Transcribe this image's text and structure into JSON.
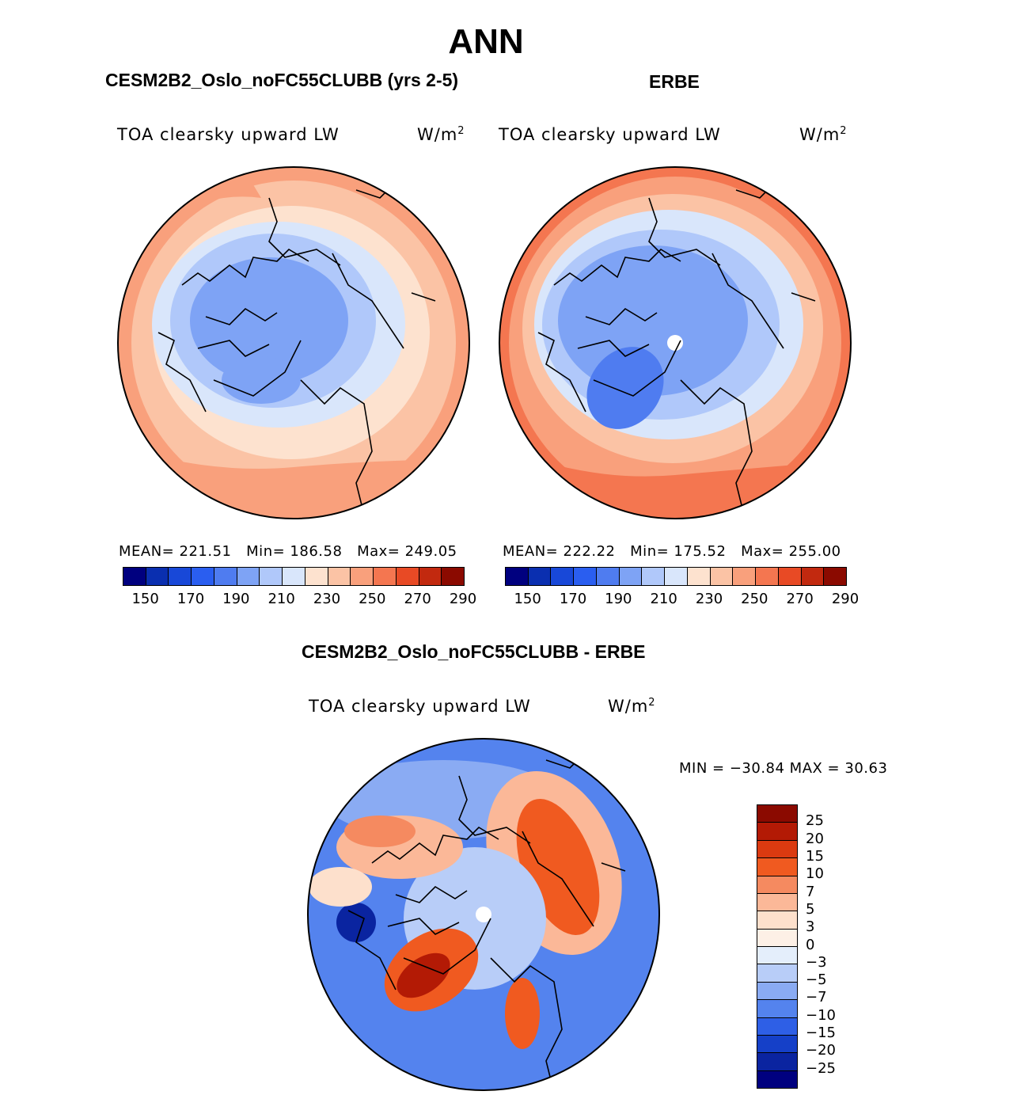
{
  "title": "ANN",
  "panels": [
    {
      "title": "CESM2B2_Oslo_noFC55CLUBB (yrs 2-5)",
      "variable": "TOA clearsky upward LW",
      "units_base": "W/m",
      "units_exp": "2",
      "mean_label": "MEAN=",
      "mean": "221.51",
      "min_label": "Min=",
      "min": "186.58",
      "max_label": "Max=",
      "max": "249.05"
    },
    {
      "title": "ERBE",
      "variable": "TOA clearsky upward LW",
      "units_base": "W/m",
      "units_exp": "2",
      "mean_label": "MEAN=",
      "mean": "222.22",
      "min_label": "Min=",
      "min": "175.52",
      "max_label": "Max=",
      "max": "255.00"
    }
  ],
  "diff_panel": {
    "title": "CESM2B2_Oslo_noFC55CLUBB - ERBE",
    "variable": "TOA clearsky upward LW",
    "units_base": "W/m",
    "units_exp": "2",
    "minmax": "MIN = −30.84 MAX =  30.63"
  },
  "chart_data": [
    {
      "type": "heatmap",
      "projection": "north-polar-stereographic",
      "title": "CESM2B2_Oslo_noFC55CLUBB (yrs 2-5)",
      "variable": "TOA clearsky upward LW",
      "units": "W/m2",
      "mean": 221.51,
      "min": 186.58,
      "max": 249.05,
      "colorbar_levels": [
        150,
        160,
        170,
        180,
        190,
        200,
        210,
        220,
        230,
        240,
        250,
        260,
        270,
        280,
        290
      ],
      "colorbar_tick_labels": [
        "150",
        "170",
        "190",
        "210",
        "230",
        "250",
        "270",
        "290"
      ],
      "colors": [
        "#00007f",
        "#0a2fb0",
        "#1848d8",
        "#2a5ef0",
        "#4f7cf0",
        "#7ea3f5",
        "#b0c8fa",
        "#d9e6fb",
        "#fde2cf",
        "#fbc3a5",
        "#f9a07c",
        "#f47650",
        "#e84a25",
        "#c2290f",
        "#8b0a00"
      ]
    },
    {
      "type": "heatmap",
      "projection": "north-polar-stereographic",
      "title": "ERBE",
      "variable": "TOA clearsky upward LW",
      "units": "W/m2",
      "mean": 222.22,
      "min": 175.52,
      "max": 255.0,
      "colorbar_levels": [
        150,
        160,
        170,
        180,
        190,
        200,
        210,
        220,
        230,
        240,
        250,
        260,
        270,
        280,
        290
      ],
      "colorbar_tick_labels": [
        "150",
        "170",
        "190",
        "210",
        "230",
        "250",
        "270",
        "290"
      ],
      "colors": [
        "#00007f",
        "#0a2fb0",
        "#1848d8",
        "#2a5ef0",
        "#4f7cf0",
        "#7ea3f5",
        "#b0c8fa",
        "#d9e6fb",
        "#fde2cf",
        "#fbc3a5",
        "#f9a07c",
        "#f47650",
        "#e84a25",
        "#c2290f",
        "#8b0a00"
      ]
    },
    {
      "type": "heatmap",
      "projection": "north-polar-stereographic",
      "title": "CESM2B2_Oslo_noFC55CLUBB - ERBE",
      "variable": "TOA clearsky upward LW",
      "units": "W/m2",
      "min": -30.84,
      "max": 30.63,
      "colorbar_levels": [
        25,
        20,
        15,
        10,
        7,
        5,
        3,
        0,
        -3,
        -5,
        -7,
        -10,
        -15,
        -20,
        -25
      ],
      "colorbar_tick_labels": [
        "25",
        "20",
        "15",
        "10",
        "7",
        "5",
        "3",
        "0",
        "−3",
        "−5",
        "−7",
        "−10",
        "−15",
        "−20",
        "−25"
      ],
      "colors": [
        "#8b0a00",
        "#b31a05",
        "#db3a10",
        "#f05a20",
        "#f58a60",
        "#fbb898",
        "#fde0cc",
        "#fdf0e6",
        "#e4eefb",
        "#b8cdf8",
        "#8aabf3",
        "#5483ee",
        "#2e5fe6",
        "#1540c8",
        "#0a24a0",
        "#00007f"
      ]
    }
  ]
}
